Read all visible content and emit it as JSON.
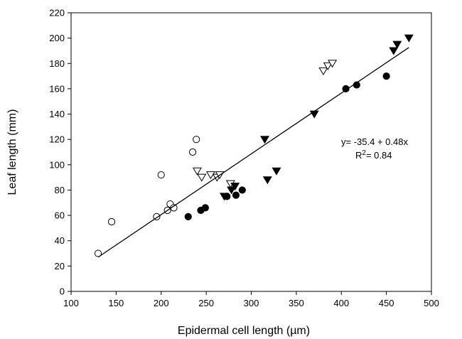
{
  "chart_data": {
    "type": "scatter",
    "xlabel_main": "Epidermal cell length (",
    "xlabel_unit": "µm",
    "xlabel_close": ")",
    "ylabel": "Leaf length (mm)",
    "xlim": [
      100,
      500
    ],
    "ylim": [
      0,
      220
    ],
    "xticks": [
      100,
      150,
      200,
      250,
      300,
      350,
      400,
      450,
      500
    ],
    "yticks": [
      0,
      20,
      40,
      60,
      80,
      100,
      120,
      140,
      160,
      180,
      200,
      220
    ],
    "grid": false,
    "series": [
      {
        "marker": "circle-open",
        "points": [
          [
            130,
            30
          ],
          [
            145,
            55
          ],
          [
            195,
            59
          ],
          [
            200,
            92
          ],
          [
            207,
            64
          ],
          [
            210,
            69
          ],
          [
            214,
            66
          ],
          [
            235,
            110
          ],
          [
            239,
            120
          ]
        ]
      },
      {
        "marker": "circle-filled",
        "points": [
          [
            230,
            59
          ],
          [
            244,
            64
          ],
          [
            249,
            66
          ],
          [
            273,
            75
          ],
          [
            283,
            76
          ],
          [
            290,
            80
          ],
          [
            405,
            160
          ],
          [
            417,
            163
          ],
          [
            450,
            170
          ]
        ]
      },
      {
        "marker": "triangle-down-open",
        "points": [
          [
            240,
            95
          ],
          [
            245,
            90
          ],
          [
            255,
            92
          ],
          [
            262,
            90
          ],
          [
            265,
            92
          ],
          [
            277,
            85
          ],
          [
            380,
            174
          ],
          [
            385,
            178
          ],
          [
            390,
            180
          ]
        ]
      },
      {
        "marker": "triangle-down-filled",
        "points": [
          [
            270,
            75
          ],
          [
            278,
            80
          ],
          [
            282,
            83
          ],
          [
            315,
            120
          ],
          [
            318,
            88
          ],
          [
            328,
            95
          ],
          [
            370,
            140
          ],
          [
            458,
            190
          ],
          [
            462,
            195
          ],
          [
            475,
            200
          ]
        ]
      }
    ],
    "regression": {
      "slope": 0.48,
      "intercept": -35.4,
      "x_range": [
        130,
        475
      ],
      "equation_line1": "y= -35.4 + 0.48x",
      "equation_r_prefix": "R",
      "equation_r_sup": "2",
      "equation_r_suffix": "= 0.84"
    }
  }
}
